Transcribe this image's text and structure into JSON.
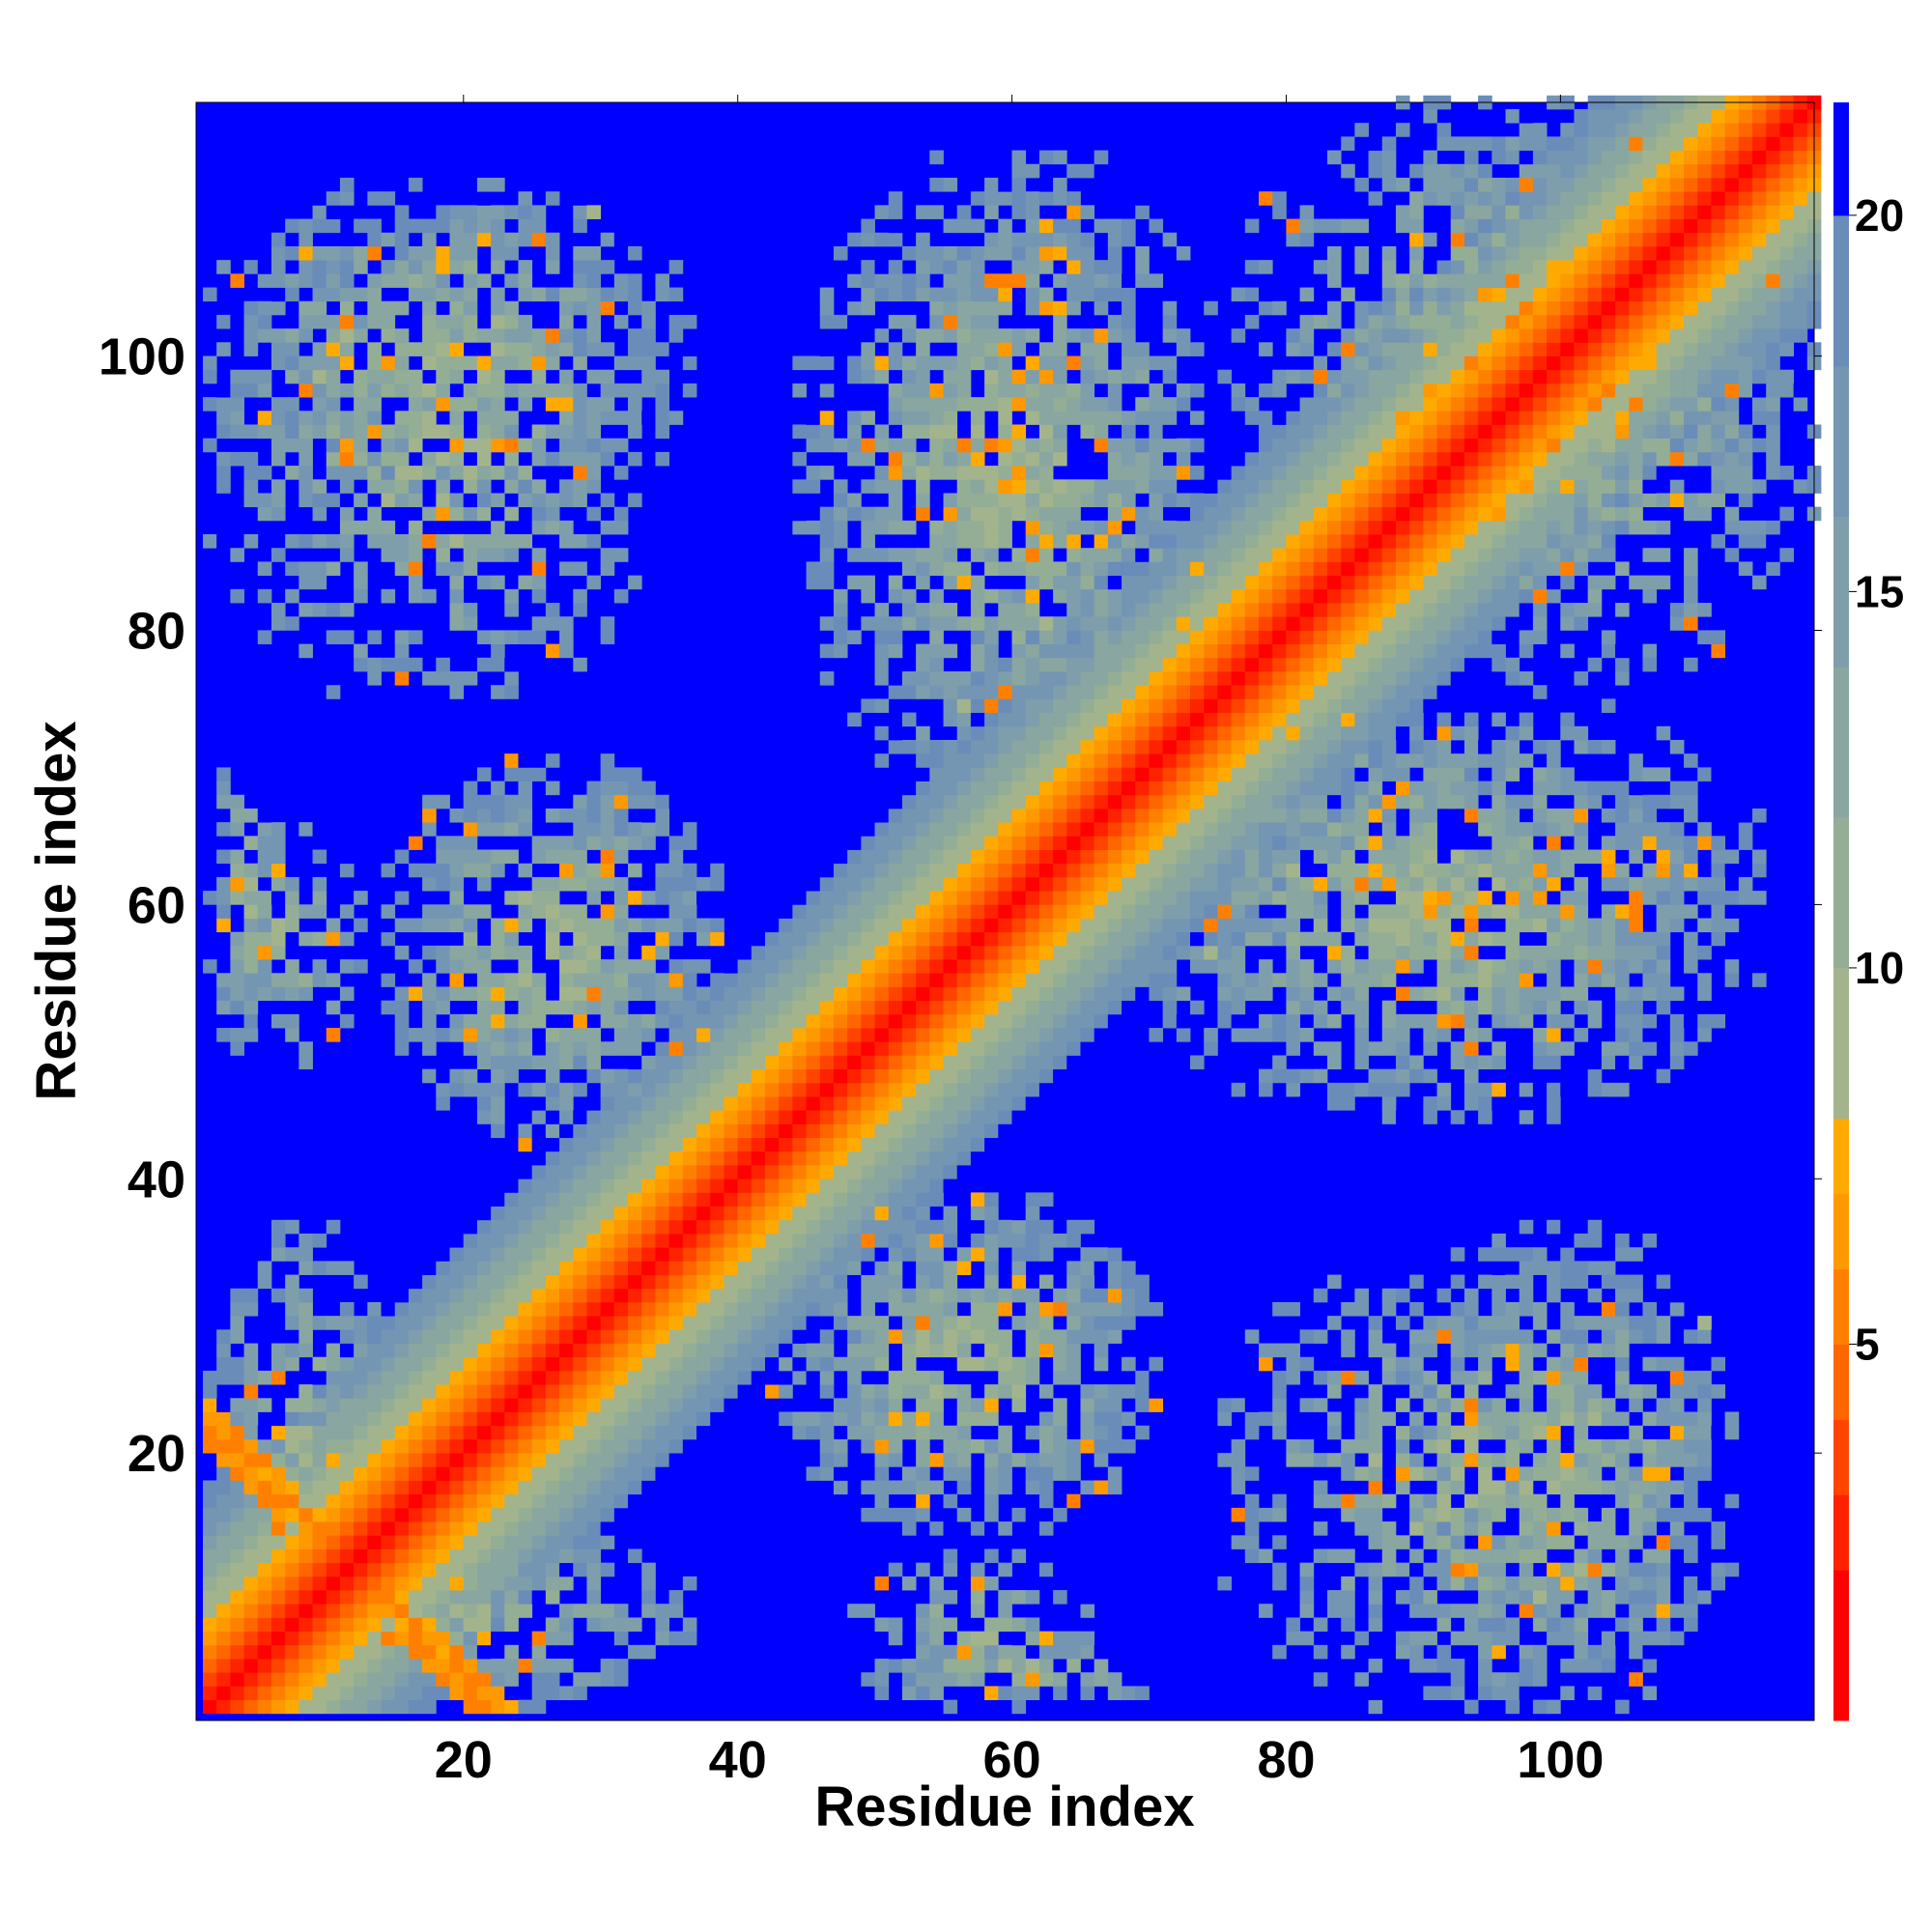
{
  "chart_data": {
    "type": "heatmap",
    "xlabel": "Residue index",
    "ylabel": "Residue index",
    "x_range": [
      1,
      118
    ],
    "y_range": [
      1,
      118
    ],
    "xticks": [
      20,
      40,
      60,
      80,
      100
    ],
    "yticks": [
      20,
      40,
      60,
      80,
      100
    ],
    "colorbar": {
      "ticks": [
        5,
        10,
        15,
        20
      ],
      "range": [
        0,
        21.5
      ],
      "colors": [
        {
          "upto": 2,
          "color": "#ff0000"
        },
        {
          "upto": 3,
          "color": "#ff2200"
        },
        {
          "upto": 4,
          "color": "#ff4400"
        },
        {
          "upto": 5,
          "color": "#ff6600"
        },
        {
          "upto": 6,
          "color": "#ff8000"
        },
        {
          "upto": 7,
          "color": "#ff9900"
        },
        {
          "upto": 8,
          "color": "#ffaa00"
        },
        {
          "upto": 10,
          "color": "#a3b48c"
        },
        {
          "upto": 12,
          "color": "#94ae96"
        },
        {
          "upto": 14,
          "color": "#89a6a0"
        },
        {
          "upto": 16,
          "color": "#7f9eab"
        },
        {
          "upto": 18,
          "color": "#7496b3"
        },
        {
          "upto": 20,
          "color": "#6a8cb8"
        },
        {
          "upto": 99,
          "color": "#0000ff"
        }
      ]
    },
    "diagonal_band": {
      "width_sigma": 5.2,
      "max_distance": 21
    },
    "contact_regions": [
      {
        "x": [
          1,
          36
        ],
        "y": [
          88,
          112
        ],
        "density": 0.62
      },
      {
        "x": [
          1,
          6
        ],
        "y": [
          48,
          72
        ],
        "density": 0.55
      },
      {
        "x": [
          14,
          38
        ],
        "y": [
          42,
          70
        ],
        "density": 0.62
      },
      {
        "x": [
          1,
          14
        ],
        "y": [
          4,
          36
        ],
        "density": 0.65
      },
      {
        "x": [
          44,
          76
        ],
        "y": [
          66,
          114
        ],
        "density": 0.65
      },
      {
        "x": [
          44,
          70
        ],
        "y": [
          14,
          38
        ],
        "density": 0.62
      },
      {
        "x": [
          48,
          66
        ],
        "y": [
          1,
          12
        ],
        "density": 0.55
      },
      {
        "x": [
          74,
          112
        ],
        "y": [
          44,
          72
        ],
        "density": 0.65
      },
      {
        "x": [
          74,
          112
        ],
        "y": [
          1,
          34
        ],
        "density": 0.58
      },
      {
        "x": [
          86,
          118
        ],
        "y": [
          76,
          116
        ],
        "density": 0.62
      }
    ],
    "cross_contacts": [
      {
        "from": [
          1,
          22
        ],
        "to": [
          20,
          1
        ]
      }
    ]
  }
}
